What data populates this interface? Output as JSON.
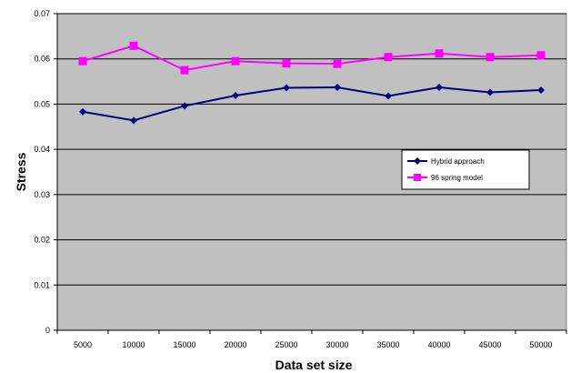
{
  "chart_data": {
    "type": "line",
    "title": "",
    "xlabel": "Data set size",
    "ylabel": "Stress",
    "categories": [
      "5000",
      "10000",
      "15000",
      "20000",
      "25000",
      "30000",
      "35000",
      "40000",
      "45000",
      "50000"
    ],
    "yticks": [
      "0",
      "0.01",
      "0.02",
      "0.03",
      "0.04",
      "0.05",
      "0.06",
      "0.07"
    ],
    "ylim": [
      0,
      0.07
    ],
    "grid": "horizontal",
    "legend_position": "right",
    "plot_background": "#c0c0c0",
    "series": [
      {
        "name": "Hybrid approach",
        "color": "#000080",
        "marker": "diamond",
        "values": [
          0.0483,
          0.0464,
          0.0496,
          0.0519,
          0.0536,
          0.0537,
          0.0518,
          0.0537,
          0.0526,
          0.0531
        ]
      },
      {
        "name": "96 spring model",
        "color": "#ff00ff",
        "marker": "square",
        "values": [
          0.0595,
          0.0629,
          0.0575,
          0.0595,
          0.059,
          0.0589,
          0.0604,
          0.0612,
          0.0604,
          0.0608
        ]
      }
    ]
  }
}
